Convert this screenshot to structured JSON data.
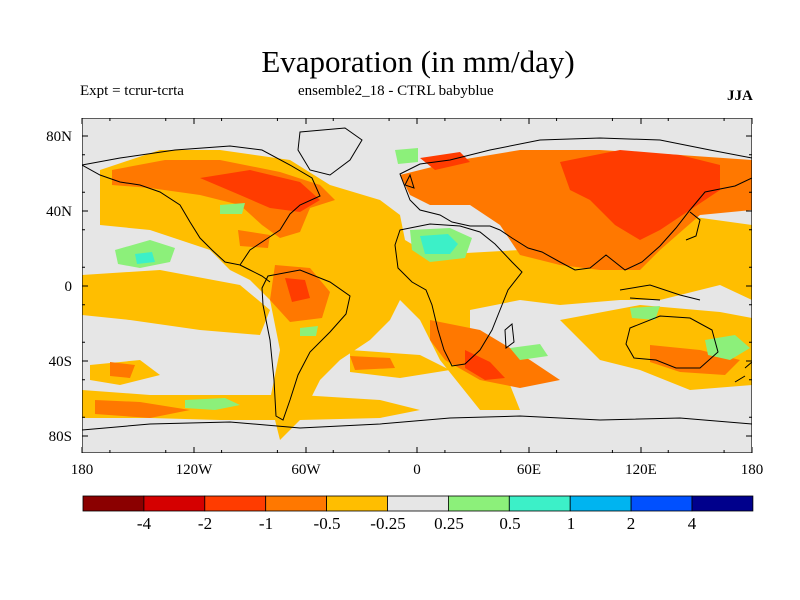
{
  "title": "Evaporation (in mm/day)",
  "experiment": "Expt = tcrur-tcrta",
  "subtitle": "ensemble2_18 - CTRL babyblue",
  "season": "JJA",
  "lat_labels": [
    "80N",
    "40N",
    "0",
    "40S",
    "80S"
  ],
  "lon_labels": [
    "180",
    "120W",
    "60W",
    "0",
    "60E",
    "120E",
    "180"
  ],
  "colorbar": {
    "colors": [
      "#8b0000",
      "#d50000",
      "#ff3c00",
      "#ff7800",
      "#ffbe00",
      "#e6e6e6",
      "#8cf07a",
      "#3cf0c8",
      "#00b4f0",
      "#0050ff",
      "#00008c"
    ],
    "labels": [
      "-4",
      "-2",
      "-1",
      "-0.5",
      "-0.25",
      "0.25",
      "0.5",
      "1",
      "2",
      "4"
    ]
  }
}
